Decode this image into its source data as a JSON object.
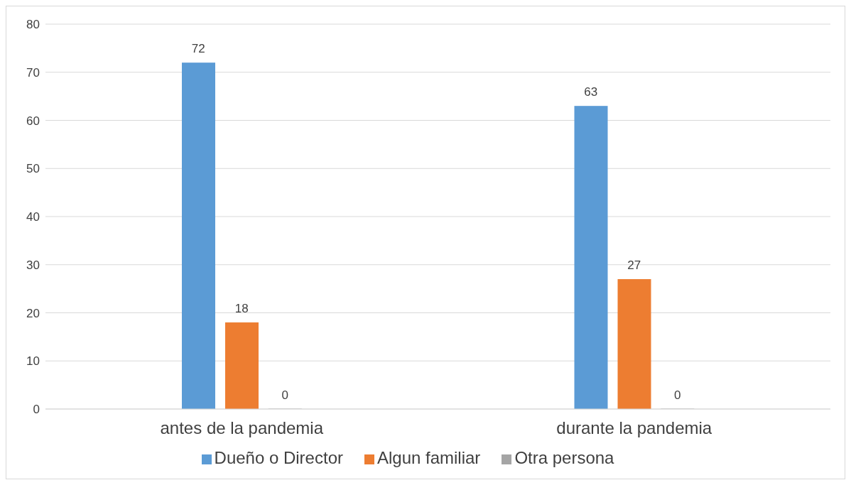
{
  "chart_data": {
    "type": "bar",
    "categories": [
      "antes de la pandemia",
      "durante la pandemia"
    ],
    "series": [
      {
        "name": "Dueño o Director",
        "color": "#5b9bd5",
        "values": [
          72,
          63
        ]
      },
      {
        "name": "Algun familiar",
        "color": "#ed7d31",
        "values": [
          18,
          27
        ]
      },
      {
        "name": "Otra persona",
        "color": "#a5a5a5",
        "values": [
          0,
          0
        ]
      }
    ],
    "ylim": [
      0,
      80
    ],
    "yticks": [
      0,
      10,
      20,
      30,
      40,
      50,
      60,
      70,
      80
    ],
    "grid": "y",
    "legend": "bottom",
    "data_labels": true
  }
}
